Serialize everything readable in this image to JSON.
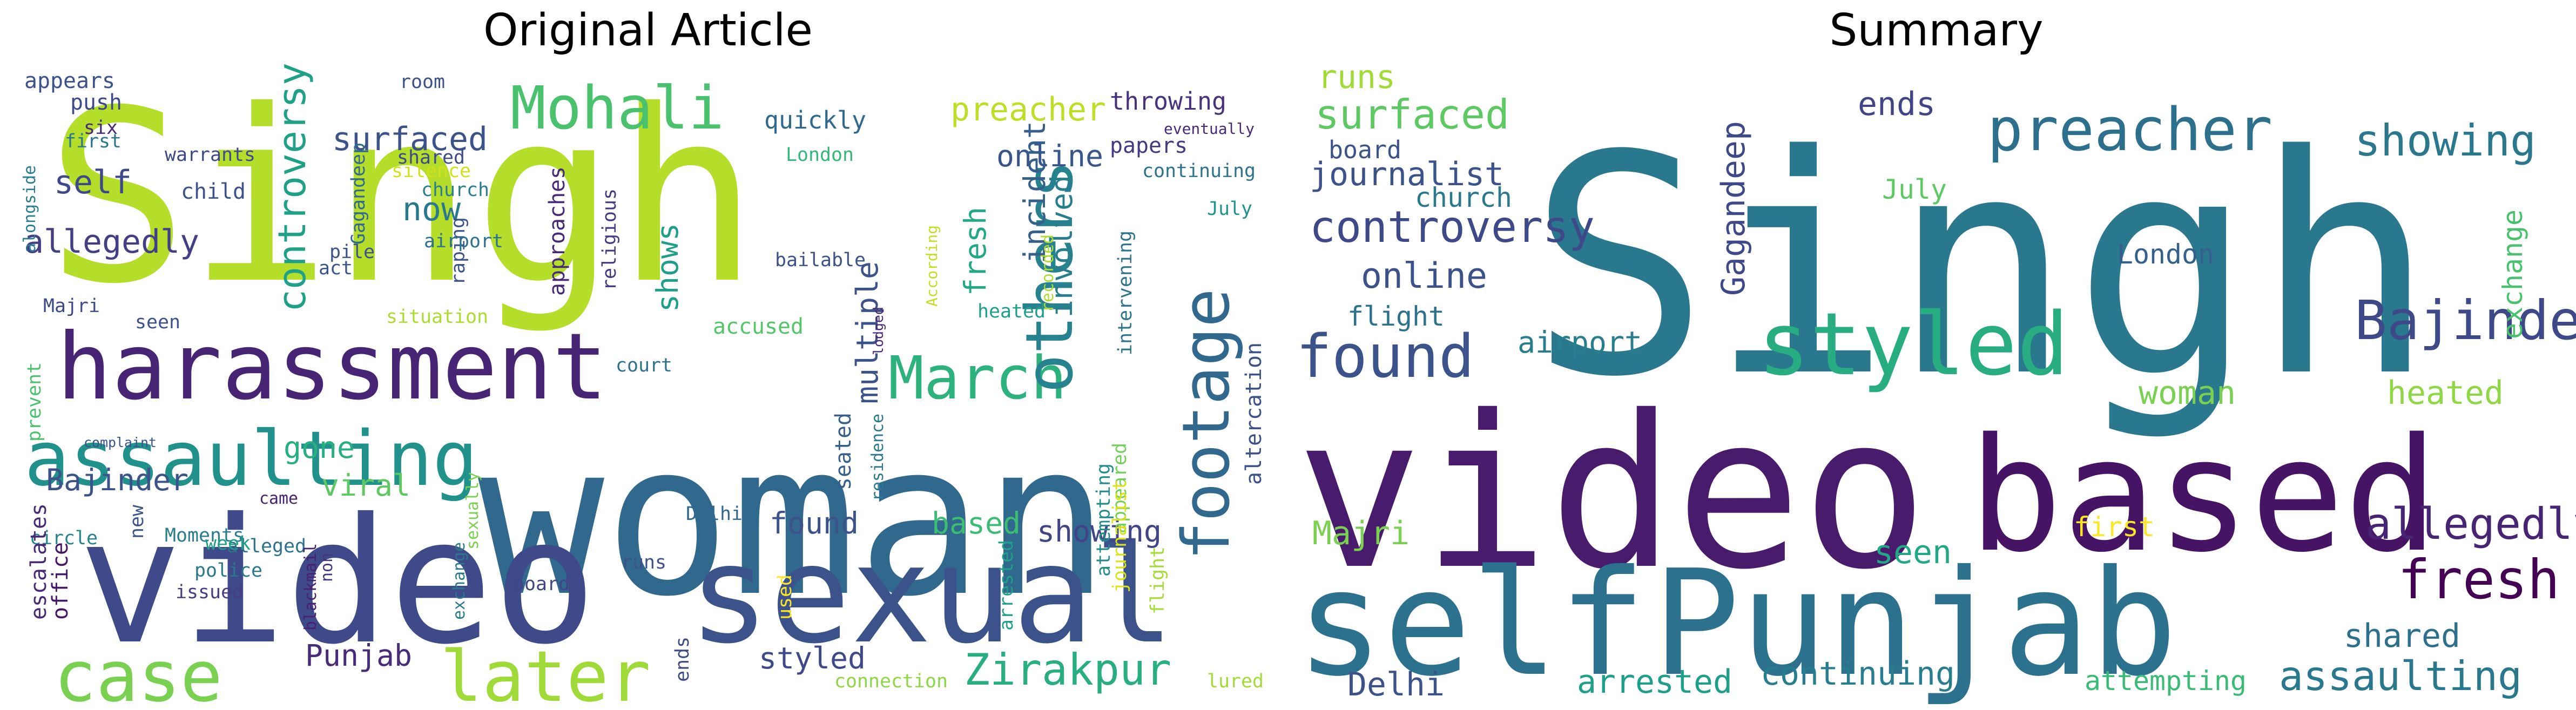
{
  "panels": [
    {
      "title": "Original Article",
      "words": [
        {
          "text": "Singh",
          "color": "#b5de2b"
        },
        {
          "text": "woman",
          "color": "#31688e"
        },
        {
          "text": "video",
          "color": "#3e4a89"
        },
        {
          "text": "sexual",
          "color": "#3b528b"
        },
        {
          "text": "harassment",
          "color": "#482475"
        },
        {
          "text": "assaulting",
          "color": "#21918c"
        },
        {
          "text": "case",
          "color": "#7ad151"
        },
        {
          "text": "later",
          "color": "#a0da39"
        },
        {
          "text": "Mohali",
          "color": "#4ac16d"
        },
        {
          "text": "March",
          "color": "#2db27d"
        },
        {
          "text": "others",
          "color": "#26828e"
        },
        {
          "text": "footage",
          "color": "#31688e"
        },
        {
          "text": "Zirakpur",
          "color": "#28ae80"
        },
        {
          "text": "controversy",
          "color": "#1fa187"
        },
        {
          "text": "surfaced",
          "color": "#3b528b"
        },
        {
          "text": "allegedly",
          "color": "#433e85"
        },
        {
          "text": "self",
          "color": "#3e4989"
        },
        {
          "text": "now",
          "color": "#2a788e"
        },
        {
          "text": "shows",
          "color": "#1f9e89"
        },
        {
          "text": "multiple",
          "color": "#3b528b"
        },
        {
          "text": "involved",
          "color": "#287d8e"
        },
        {
          "text": "incident",
          "color": "#355f8d"
        },
        {
          "text": "fresh",
          "color": "#22a884"
        },
        {
          "text": "preacher",
          "color": "#bddf26"
        },
        {
          "text": "online",
          "color": "#39568c"
        },
        {
          "text": "throwing",
          "color": "#46327e"
        },
        {
          "text": "quickly",
          "color": "#31688e"
        },
        {
          "text": "London",
          "color": "#35b779"
        },
        {
          "text": "papers",
          "color": "#443983"
        },
        {
          "text": "eventually",
          "color": "#482878"
        },
        {
          "text": "continuing",
          "color": "#2c728e"
        },
        {
          "text": "July",
          "color": "#20938c"
        },
        {
          "text": "recorded",
          "color": "#addc30"
        },
        {
          "text": "According",
          "color": "#c2df23"
        },
        {
          "text": "intervening",
          "color": "#2c738e"
        },
        {
          "text": "showing",
          "color": "#414487"
        },
        {
          "text": "based",
          "color": "#3dbc74"
        },
        {
          "text": "found",
          "color": "#3b528b"
        },
        {
          "text": "styled",
          "color": "#3e4989"
        },
        {
          "text": "Punjab",
          "color": "#472c7a"
        },
        {
          "text": "Bajinder",
          "color": "#3b528b"
        },
        {
          "text": "gone",
          "color": "#29af7f"
        },
        {
          "text": "viral",
          "color": "#5ec962"
        },
        {
          "text": "Moments",
          "color": "#287d8e"
        },
        {
          "text": "circle",
          "color": "#25848e"
        },
        {
          "text": "came",
          "color": "#482173"
        },
        {
          "text": "alleged",
          "color": "#2c728e"
        },
        {
          "text": "complaint",
          "color": "#3b528b"
        },
        {
          "text": "escalates",
          "color": "#482878"
        },
        {
          "text": "office",
          "color": "#481668"
        },
        {
          "text": "new",
          "color": "#3b528b"
        },
        {
          "text": "week",
          "color": "#1f9e89"
        },
        {
          "text": "police",
          "color": "#2a788e"
        },
        {
          "text": "issued",
          "color": "#433e85"
        },
        {
          "text": "blackmail",
          "color": "#482173"
        },
        {
          "text": "non",
          "color": "#463480"
        },
        {
          "text": "exchange",
          "color": "#2a788e"
        },
        {
          "text": "sexually",
          "color": "#7ad151"
        },
        {
          "text": "board",
          "color": "#404588"
        },
        {
          "text": "runs",
          "color": "#3b528b"
        },
        {
          "text": "ends",
          "color": "#3e4989"
        },
        {
          "text": "used",
          "color": "#fde725"
        },
        {
          "text": "Delhi",
          "color": "#31688e"
        },
        {
          "text": "appeared",
          "color": "#73d056"
        },
        {
          "text": "arrested",
          "color": "#1fa187"
        },
        {
          "text": "flight",
          "color": "#a5db36"
        },
        {
          "text": "attempting",
          "color": "#228c8d"
        },
        {
          "text": "journalist",
          "color": "#dde318"
        },
        {
          "text": "lured",
          "color": "#a2da37"
        },
        {
          "text": "connection",
          "color": "#8ed645"
        },
        {
          "text": "altercation",
          "color": "#3b528b"
        },
        {
          "text": "residence",
          "color": "#2a788e"
        },
        {
          "text": "seated",
          "color": "#355f8d"
        },
        {
          "text": "lodged",
          "color": "#482878"
        },
        {
          "text": "heated",
          "color": "#1f9e89"
        },
        {
          "text": "accused",
          "color": "#54c568"
        },
        {
          "text": "bailable",
          "color": "#3b528b"
        },
        {
          "text": "court",
          "color": "#2c728e"
        },
        {
          "text": "situation",
          "color": "#aadc32"
        },
        {
          "text": "approaches",
          "color": "#482878"
        },
        {
          "text": "religious",
          "color": "#443983"
        },
        {
          "text": "raping",
          "color": "#3b528b"
        },
        {
          "text": "airport",
          "color": "#2c728e"
        },
        {
          "text": "act",
          "color": "#39568c"
        },
        {
          "text": "pile",
          "color": "#3b528b"
        },
        {
          "text": "church",
          "color": "#287d8e"
        },
        {
          "text": "silence",
          "color": "#d0e11c"
        },
        {
          "text": "shared",
          "color": "#3e4989"
        },
        {
          "text": "room",
          "color": "#3b528b"
        },
        {
          "text": "Gagandeep",
          "color": "#31688e"
        },
        {
          "text": "warrants",
          "color": "#3e4989"
        },
        {
          "text": "child",
          "color": "#3b528b"
        },
        {
          "text": "six",
          "color": "#482878"
        },
        {
          "text": "push",
          "color": "#3e4989"
        },
        {
          "text": "appears",
          "color": "#3b528b"
        },
        {
          "text": "first",
          "color": "#2a788e"
        },
        {
          "text": "alongside",
          "color": "#287d8e"
        },
        {
          "text": "Majri",
          "color": "#3e4989"
        },
        {
          "text": "seen",
          "color": "#3b528b"
        },
        {
          "text": "prevent",
          "color": "#4ac16d"
        }
      ]
    },
    {
      "title": "Summary",
      "words": [
        {
          "text": "Singh",
          "color": "#2a788e"
        },
        {
          "text": "video",
          "color": "#481b6d"
        },
        {
          "text": "based",
          "color": "#471365"
        },
        {
          "text": "self",
          "color": "#2c728e"
        },
        {
          "text": "Punjab",
          "color": "#2c728e"
        },
        {
          "text": "styled",
          "color": "#27ad81"
        },
        {
          "text": "found",
          "color": "#3b528b"
        },
        {
          "text": "preacher",
          "color": "#2d708e"
        },
        {
          "text": "showing",
          "color": "#2a788e"
        },
        {
          "text": "Bajinder",
          "color": "#3e4989"
        },
        {
          "text": "controversy",
          "color": "#3e4989"
        },
        {
          "text": "journalist",
          "color": "#3b528b"
        },
        {
          "text": "surfaced",
          "color": "#5ec962"
        },
        {
          "text": "runs",
          "color": "#a2da37"
        },
        {
          "text": "board",
          "color": "#3b528b"
        },
        {
          "text": "church",
          "color": "#2a788e"
        },
        {
          "text": "online",
          "color": "#3b528b"
        },
        {
          "text": "flight",
          "color": "#2c728e"
        },
        {
          "text": "airport",
          "color": "#287d8e"
        },
        {
          "text": "Gagandeep",
          "color": "#3e4989"
        },
        {
          "text": "ends",
          "color": "#414487"
        },
        {
          "text": "July",
          "color": "#5ec962"
        },
        {
          "text": "London",
          "color": "#355f8d"
        },
        {
          "text": "exchange",
          "color": "#4ac16d"
        },
        {
          "text": "woman",
          "color": "#7ad151"
        },
        {
          "text": "heated",
          "color": "#8fd744"
        },
        {
          "text": "allegedly",
          "color": "#482475"
        },
        {
          "text": "fresh",
          "color": "#440154"
        },
        {
          "text": "shared",
          "color": "#2d708e"
        },
        {
          "text": "assaulting",
          "color": "#2a788e"
        },
        {
          "text": "first",
          "color": "#fde725"
        },
        {
          "text": "attempting",
          "color": "#3bbb75"
        },
        {
          "text": "continuing",
          "color": "#287d8e"
        },
        {
          "text": "arrested",
          "color": "#1f9e89"
        },
        {
          "text": "Delhi",
          "color": "#3b528b"
        },
        {
          "text": "seen",
          "color": "#22a884"
        },
        {
          "text": "Majri",
          "color": "#7ad151"
        }
      ]
    }
  ]
}
